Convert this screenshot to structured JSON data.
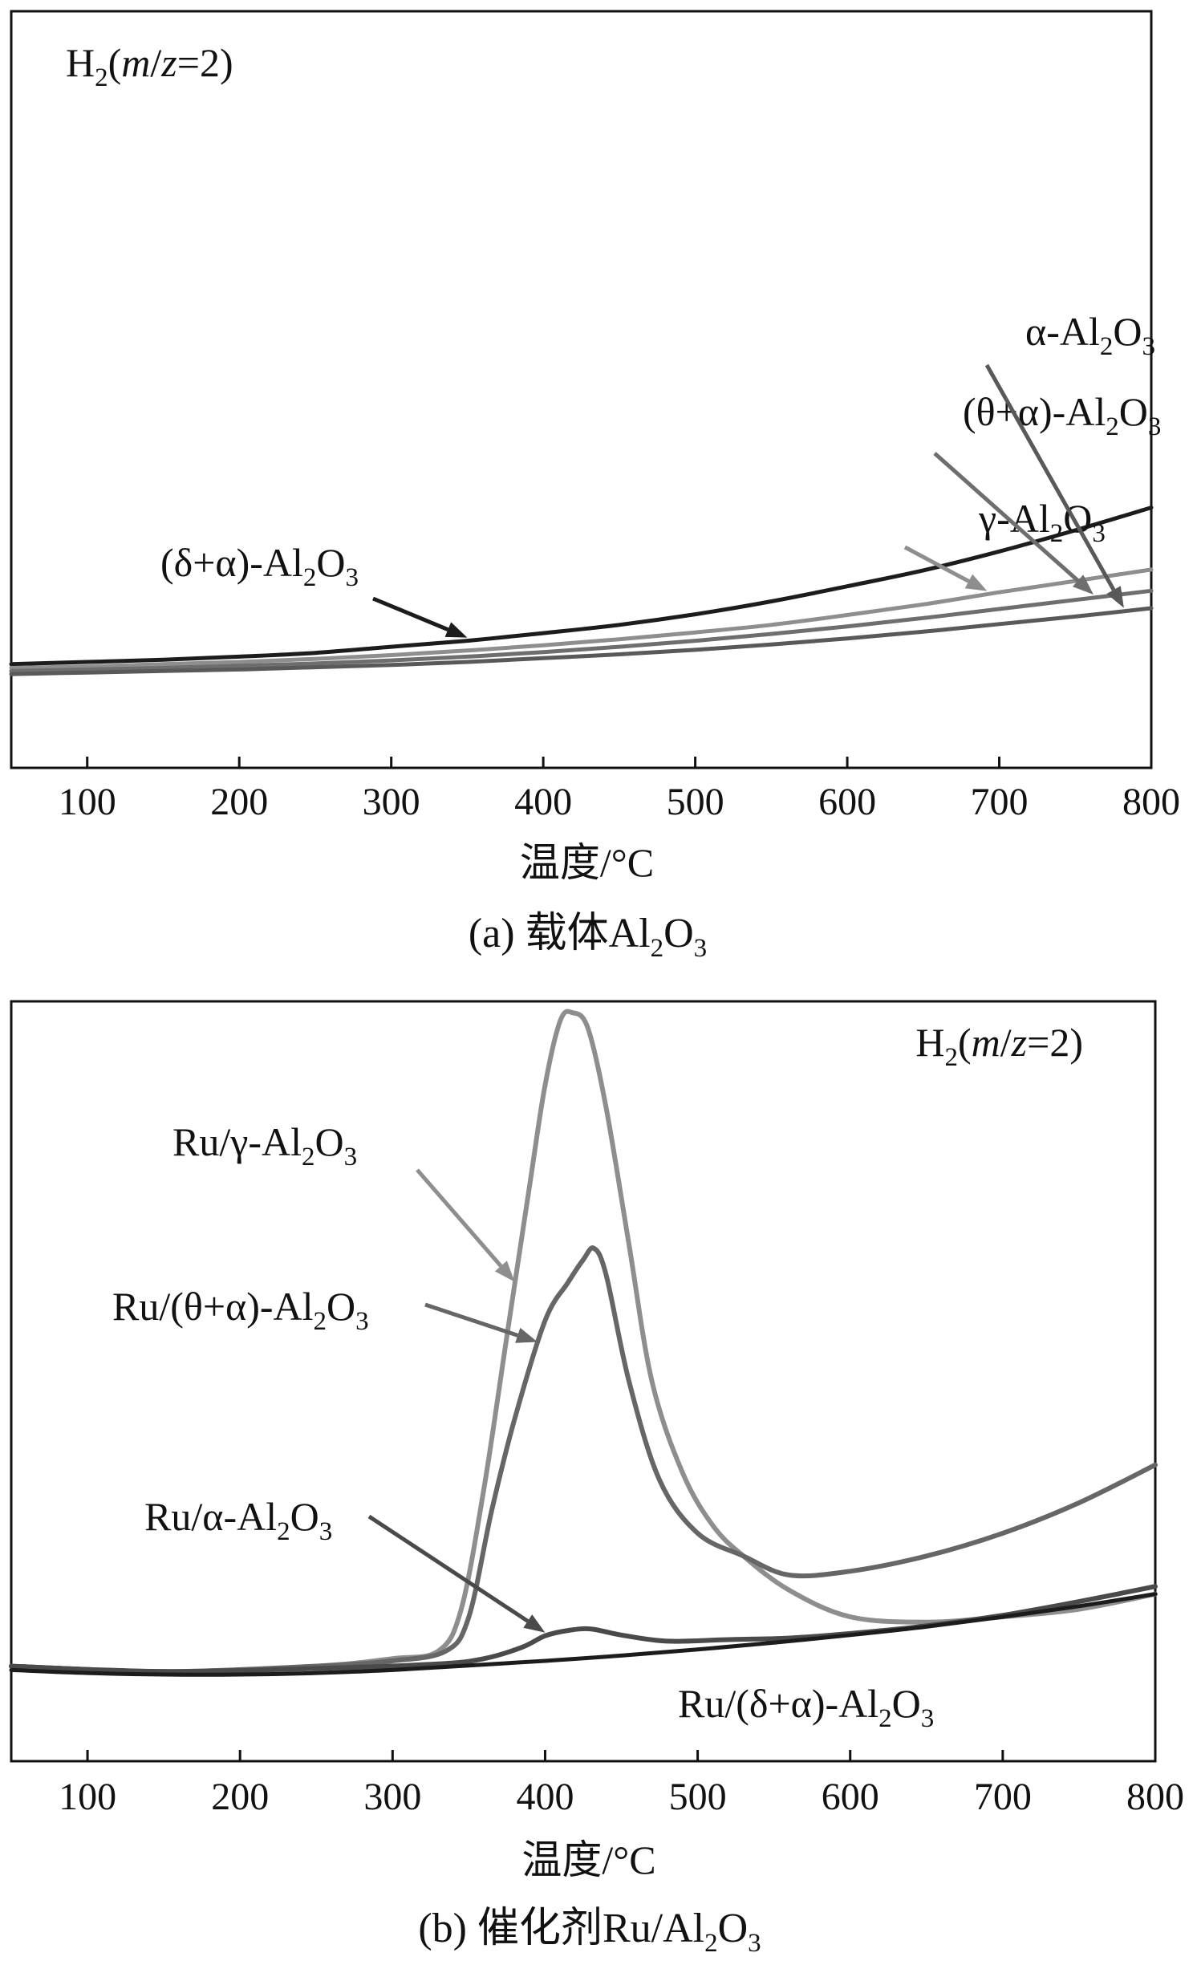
{
  "chart_data": [
    {
      "type": "line",
      "panel": "(a)",
      "caption": "(a) 载体Al₂O₃",
      "caption_parts": {
        "prefix": "(a) 载体Al",
        "sub1": "2",
        "mid": "O",
        "sub2": "3"
      },
      "annotation": {
        "lead": "H",
        "sub": "2",
        "open": "(",
        "m": "m",
        "slash": "/",
        "z": "z",
        "rest": "=2)"
      },
      "xlabel": "温度/°C",
      "ylabel": "",
      "xlim": [
        50,
        800
      ],
      "ylim": [
        0,
        1
      ],
      "y_ticks_shown": false,
      "x_ticks": [
        100,
        200,
        300,
        400,
        500,
        600,
        700,
        800
      ],
      "x_tick_labels": [
        "100",
        "200",
        "300",
        "400",
        "500",
        "600",
        "700",
        "800"
      ],
      "grid": false,
      "series": [
        {
          "name": "(δ+α)-Al₂O₃",
          "label_parts": {
            "pre": "(δ+α)-Al",
            "s1": "2",
            "mid": "O",
            "s2": "3"
          },
          "color": "#1c1c1c",
          "x": [
            50,
            100,
            150,
            200,
            250,
            300,
            350,
            400,
            450,
            500,
            550,
            600,
            650,
            700,
            750,
            800
          ],
          "y": [
            0.137,
            0.14,
            0.143,
            0.147,
            0.152,
            0.16,
            0.168,
            0.178,
            0.189,
            0.203,
            0.22,
            0.24,
            0.261,
            0.286,
            0.314,
            0.344
          ]
        },
        {
          "name": "γ-Al₂O₃",
          "label_parts": {
            "pre": "γ-Al",
            "s1": "2",
            "mid": "O",
            "s2": "3"
          },
          "color": "#8e8e8e",
          "x": [
            50,
            100,
            150,
            200,
            250,
            300,
            350,
            400,
            450,
            500,
            550,
            600,
            650,
            700,
            750,
            800
          ],
          "y": [
            0.132,
            0.134,
            0.137,
            0.14,
            0.144,
            0.149,
            0.155,
            0.162,
            0.17,
            0.179,
            0.189,
            0.202,
            0.216,
            0.232,
            0.247,
            0.262
          ]
        },
        {
          "name": "(θ+α)-Al₂O₃",
          "label_parts": {
            "pre": "(θ+α)-Al",
            "s1": "2",
            "mid": "O",
            "s2": "3"
          },
          "color": "#6e6e6e",
          "x": [
            50,
            100,
            150,
            200,
            250,
            300,
            350,
            400,
            450,
            500,
            550,
            600,
            650,
            700,
            750,
            800
          ],
          "y": [
            0.128,
            0.13,
            0.132,
            0.135,
            0.138,
            0.142,
            0.147,
            0.153,
            0.16,
            0.168,
            0.177,
            0.187,
            0.198,
            0.21,
            0.222,
            0.234
          ]
        },
        {
          "name": "α-Al₂O₃",
          "label_parts": {
            "pre": "α-Al",
            "s1": "2",
            "mid": "O",
            "s2": "3"
          },
          "color": "#595959",
          "x": [
            50,
            100,
            150,
            200,
            250,
            300,
            350,
            400,
            450,
            500,
            550,
            600,
            650,
            700,
            750,
            800
          ],
          "y": [
            0.124,
            0.126,
            0.128,
            0.13,
            0.133,
            0.136,
            0.14,
            0.145,
            0.15,
            0.156,
            0.163,
            0.171,
            0.18,
            0.19,
            0.2,
            0.211
          ]
        }
      ]
    },
    {
      "type": "line",
      "panel": "(b)",
      "caption": "(b) 催化剂Ru/Al₂O₃",
      "caption_parts": {
        "prefix": "(b) 催化剂Ru/Al",
        "sub1": "2",
        "mid": "O",
        "sub2": "3"
      },
      "annotation": {
        "lead": "H",
        "sub": "2",
        "open": "(",
        "m": "m",
        "slash": "/",
        "z": "z",
        "rest": "=2)"
      },
      "xlabel": "温度/°C",
      "ylabel": "",
      "xlim": [
        50,
        800
      ],
      "ylim": [
        0,
        1
      ],
      "y_ticks_shown": false,
      "x_ticks": [
        100,
        200,
        300,
        400,
        500,
        600,
        700,
        800
      ],
      "x_tick_labels": [
        "100",
        "200",
        "300",
        "400",
        "500",
        "600",
        "700",
        "800"
      ],
      "grid": false,
      "series": [
        {
          "name": "Ru/γ-Al₂O₃",
          "label_parts": {
            "pre": "Ru/γ-Al",
            "s1": "2",
            "mid": "O",
            "s2": "3"
          },
          "color": "#8e8e8e",
          "x": [
            50,
            150,
            250,
            300,
            330,
            345,
            360,
            375,
            390,
            400,
            410,
            418,
            428,
            440,
            455,
            470,
            490,
            510,
            530,
            560,
            600,
            650,
            700,
            750,
            800
          ],
          "y": [
            0.125,
            0.118,
            0.125,
            0.135,
            0.145,
            0.2,
            0.36,
            0.56,
            0.76,
            0.89,
            0.975,
            0.985,
            0.965,
            0.86,
            0.68,
            0.5,
            0.38,
            0.31,
            0.27,
            0.225,
            0.19,
            0.183,
            0.19,
            0.2,
            0.22
          ]
        },
        {
          "name": "Ru/(θ+α)-Al₂O₃",
          "label_parts": {
            "pre": "Ru/(θ+α)-Al",
            "s1": "2",
            "mid": "O",
            "s2": "3"
          },
          "color": "#666666",
          "x": [
            50,
            150,
            250,
            300,
            335,
            350,
            365,
            380,
            400,
            415,
            425,
            432,
            440,
            455,
            475,
            500,
            530,
            560,
            600,
            650,
            700,
            750,
            800
          ],
          "y": [
            0.125,
            0.118,
            0.125,
            0.132,
            0.145,
            0.19,
            0.33,
            0.45,
            0.58,
            0.63,
            0.66,
            0.675,
            0.64,
            0.5,
            0.37,
            0.3,
            0.27,
            0.245,
            0.25,
            0.27,
            0.3,
            0.34,
            0.39
          ]
        },
        {
          "name": "Ru/α-Al₂O₃",
          "label_parts": {
            "pre": "Ru/α-Al",
            "s1": "2",
            "mid": "O",
            "s2": "3"
          },
          "color": "#4a4a4a",
          "x": [
            50,
            150,
            250,
            330,
            360,
            385,
            400,
            415,
            430,
            450,
            480,
            520,
            560,
            600,
            650,
            700,
            750,
            800
          ],
          "y": [
            0.125,
            0.118,
            0.122,
            0.128,
            0.135,
            0.15,
            0.165,
            0.172,
            0.174,
            0.166,
            0.158,
            0.16,
            0.162,
            0.168,
            0.178,
            0.192,
            0.21,
            0.23
          ]
        },
        {
          "name": "Ru/(δ+α)-Al₂O₃",
          "label_parts": {
            "pre": "Ru/(δ+α)-Al",
            "s1": "2",
            "mid": "O",
            "s2": "3"
          },
          "color": "#1c1c1c",
          "x": [
            50,
            100,
            150,
            200,
            250,
            300,
            350,
            400,
            450,
            500,
            550,
            600,
            650,
            700,
            750,
            800
          ],
          "y": [
            0.12,
            0.116,
            0.114,
            0.114,
            0.116,
            0.12,
            0.126,
            0.132,
            0.139,
            0.147,
            0.156,
            0.166,
            0.177,
            0.19,
            0.204,
            0.22
          ]
        }
      ]
    }
  ]
}
